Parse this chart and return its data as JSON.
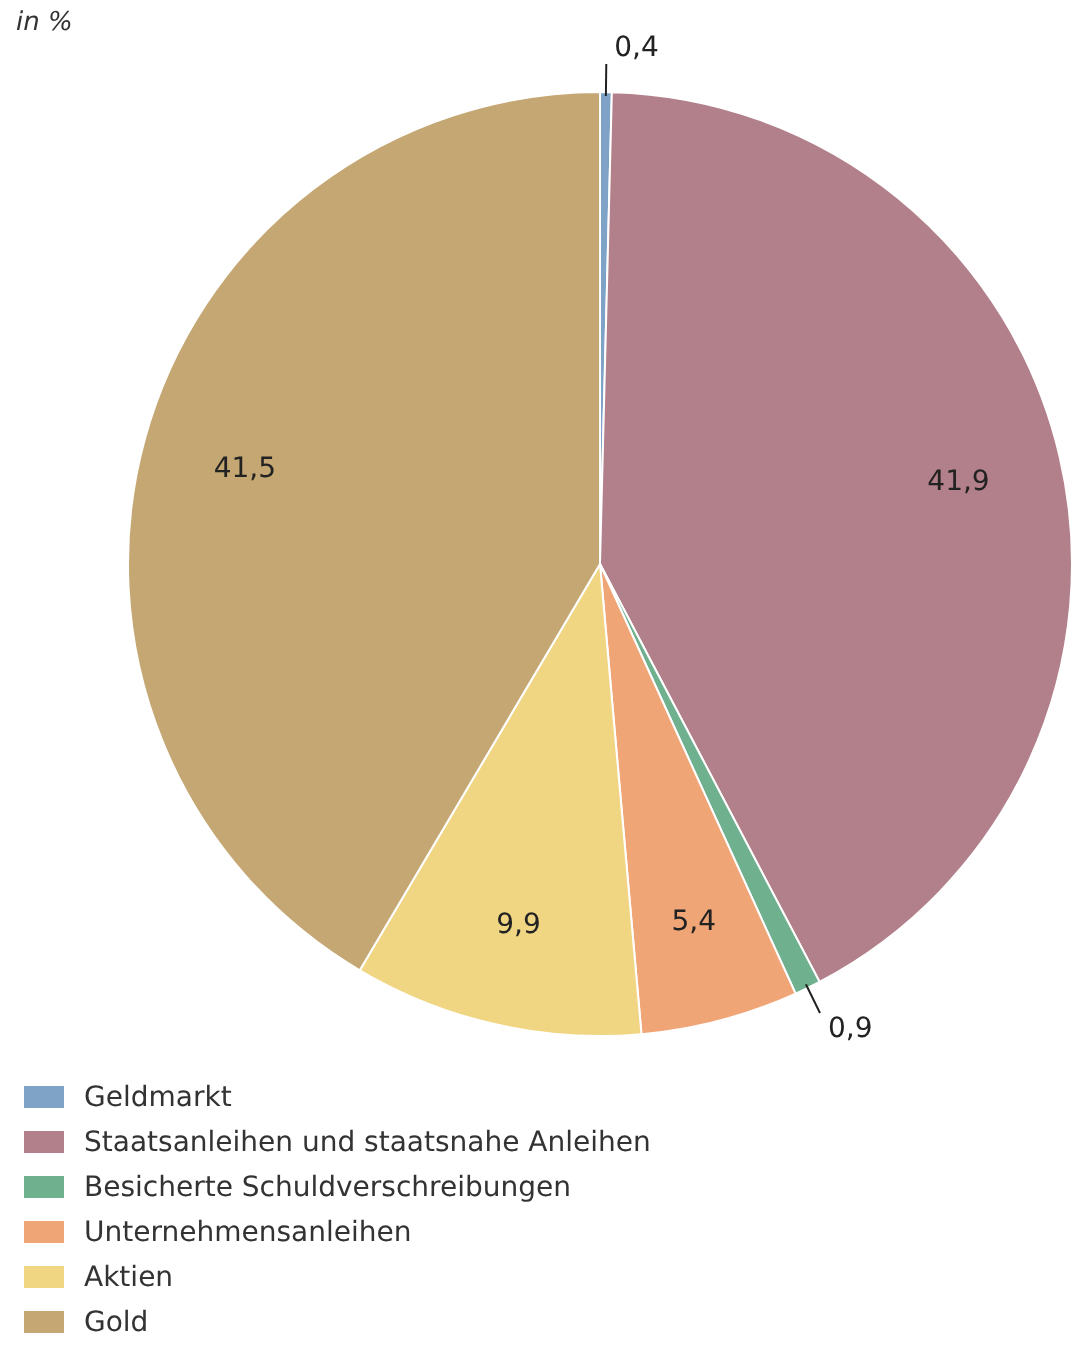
{
  "chart_data": {
    "type": "pie",
    "title": "in %",
    "categories": [
      "Geldmarkt",
      "Staatsanleihen und staatsnahe Anleihen",
      "Besicherte Schuldverschreibungen",
      "Unternehmensanleihen",
      "Aktien",
      "Gold"
    ],
    "values": [
      0.4,
      41.9,
      0.9,
      5.4,
      9.9,
      41.5
    ],
    "colors": [
      "#7fa3c6",
      "#b2808a",
      "#6fb08f",
      "#f0a577",
      "#f0d582",
      "#c4a773"
    ],
    "value_labels": [
      "0,4",
      "41,9",
      "0,9",
      "5,4",
      "9,9",
      "41,5"
    ],
    "legend": "bottom"
  }
}
